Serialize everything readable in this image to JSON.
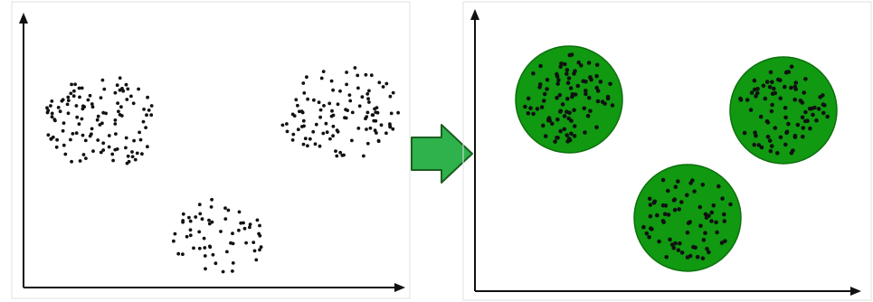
{
  "colors": {
    "background": "#ffffff",
    "axis": "#111111",
    "point": "#111111",
    "panel_border": "#e0e0e0",
    "cluster_fill": "#119911",
    "cluster_stroke": "#0d6f0d",
    "arrow_fill": "#2fb24c",
    "arrow_stroke": "#1b5e20"
  },
  "icons": {
    "transition": "right-arrow-icon"
  },
  "panels": {
    "left": {
      "name": "unclustered-data-panel"
    },
    "right": {
      "name": "clustered-data-panel"
    }
  },
  "clusters": [
    {
      "name": "cluster-top-left"
    },
    {
      "name": "cluster-top-right"
    },
    {
      "name": "cluster-bottom"
    }
  ]
}
